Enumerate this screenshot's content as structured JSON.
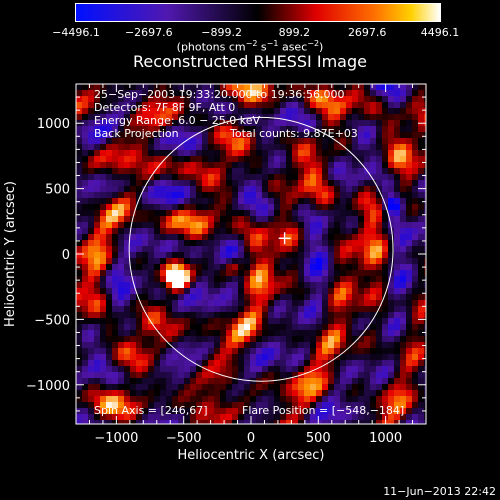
{
  "colorbar": {
    "ticks": [
      "−4496.1",
      "−2697.6",
      "−899.2",
      "899.2",
      "2697.6",
      "4496.1"
    ],
    "units_prefix": "(photons cm",
    "units_sup1": "−2",
    "units_mid1": " s",
    "units_sup2": "−1",
    "units_mid2": " asec",
    "units_sup3": "−2",
    "units_suffix": ")"
  },
  "info": {
    "time_range": "25−Sep−2003 19:33:20.000 to 19:36:56.000",
    "detectors": "Detectors: 7F 8F 9F, Att 0",
    "energy": "Energy Range: 6.0 − 25.0 keV",
    "method": "Back Projection",
    "counts": "Total counts: 9.87E+03",
    "spin_axis": "Spin Axis = [246,67]",
    "flare_position": "Flare Position = [−548,−184]"
  },
  "timestamp": "11−Jun−2013 22:42",
  "chart_data": {
    "type": "heatmap",
    "title": "Reconstructed RHESSI Image",
    "xlabel": "Heliocentric X (arcsec)",
    "ylabel": "Heliocentric Y (arcsec)",
    "xlim": [
      -1300,
      1300
    ],
    "ylim": [
      -1300,
      1300
    ],
    "x_ticks": [
      -1000,
      -500,
      0,
      500,
      1000
    ],
    "y_ticks": [
      -1000,
      -500,
      0,
      500,
      1000
    ],
    "color_range": [
      -4496.1,
      4496.1
    ],
    "solar_disk_radius": 980,
    "marker_cross": [
      250,
      120
    ],
    "flare_position": [
      -548,
      -184
    ],
    "peaks": [
      {
        "x": -548,
        "y": -184,
        "value": 4496.1
      },
      {
        "x": -130,
        "y": -100,
        "value": 2800
      },
      {
        "x": 1050,
        "y": 380,
        "value": -4496.1
      }
    ],
    "colors": {
      "negative": "#0000ff",
      "zero": "#000000",
      "positive": "#ff0000",
      "max": "#ffffff"
    }
  }
}
